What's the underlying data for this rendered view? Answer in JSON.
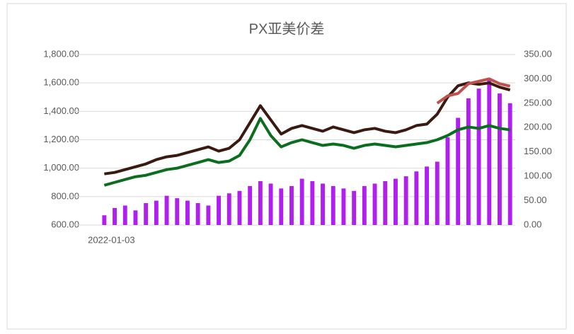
{
  "chart_data": {
    "type": "combo",
    "title": "PX亚美价差",
    "categories": [
      "2022-01-03",
      null,
      null,
      null,
      null,
      null,
      null,
      null,
      null,
      null,
      null,
      null,
      null,
      null,
      null,
      null,
      null,
      null,
      null,
      null,
      null,
      null,
      null,
      null,
      null,
      null,
      null,
      null,
      null,
      null,
      null,
      null,
      null,
      null,
      null,
      null,
      null,
      null,
      null,
      null
    ],
    "series": [
      {
        "kind": "bar",
        "axis": "y2",
        "color": "#b01ef0",
        "values": [
          20,
          35,
          40,
          30,
          45,
          50,
          60,
          55,
          50,
          45,
          40,
          60,
          65,
          70,
          80,
          90,
          85,
          75,
          80,
          95,
          90,
          85,
          80,
          75,
          70,
          80,
          85,
          90,
          95,
          100,
          110,
          120,
          130,
          180,
          220,
          260,
          280,
          300,
          270,
          250
        ]
      },
      {
        "kind": "line",
        "axis": "y",
        "color": "#3a1a10",
        "values": [
          960,
          970,
          990,
          1010,
          1030,
          1060,
          1080,
          1090,
          1110,
          1130,
          1150,
          1120,
          1140,
          1200,
          1320,
          1440,
          1340,
          1240,
          1280,
          1300,
          1280,
          1260,
          1290,
          1270,
          1250,
          1270,
          1280,
          1260,
          1250,
          1270,
          1300,
          1310,
          1380,
          1500,
          1580,
          1600,
          1590,
          1600,
          1570,
          1550
        ]
      },
      {
        "kind": "line",
        "axis": "y",
        "color": "#0a6e1e",
        "values": [
          880,
          900,
          920,
          940,
          950,
          970,
          990,
          1000,
          1020,
          1040,
          1060,
          1040,
          1050,
          1090,
          1200,
          1350,
          1230,
          1150,
          1180,
          1200,
          1180,
          1160,
          1170,
          1160,
          1140,
          1160,
          1170,
          1160,
          1150,
          1160,
          1170,
          1180,
          1200,
          1230,
          1270,
          1290,
          1280,
          1300,
          1280,
          1270
        ]
      },
      {
        "kind": "line",
        "axis": "y2",
        "color": "#c0504d",
        "values": [
          null,
          null,
          null,
          null,
          null,
          null,
          null,
          null,
          null,
          null,
          null,
          null,
          null,
          null,
          null,
          null,
          null,
          null,
          null,
          null,
          null,
          null,
          null,
          null,
          null,
          null,
          null,
          null,
          null,
          null,
          null,
          null,
          250,
          265,
          270,
          290,
          295,
          300,
          290,
          285
        ]
      }
    ],
    "ylim": [
      600,
      1800
    ],
    "yticks": [
      {
        "value": 600,
        "label": "600.00"
      },
      {
        "value": 800,
        "label": "800.00"
      },
      {
        "value": 1000,
        "label": "1,000.00"
      },
      {
        "value": 1200,
        "label": "1,200.00"
      },
      {
        "value": 1400,
        "label": "1,400.00"
      },
      {
        "value": 1600,
        "label": "1,600.00"
      },
      {
        "value": 1800,
        "label": "1,800.00"
      }
    ],
    "y2lim": [
      0,
      350
    ],
    "y2ticks": [
      {
        "value": 0,
        "label": "0.00"
      },
      {
        "value": 50,
        "label": "50.00"
      },
      {
        "value": 100,
        "label": "100.00"
      },
      {
        "value": 150,
        "label": "150.00"
      },
      {
        "value": 200,
        "label": "200.00"
      },
      {
        "value": 250,
        "label": "250.00"
      },
      {
        "value": 300,
        "label": "300.00"
      },
      {
        "value": 350,
        "label": "350.00"
      }
    ],
    "grid": true
  }
}
